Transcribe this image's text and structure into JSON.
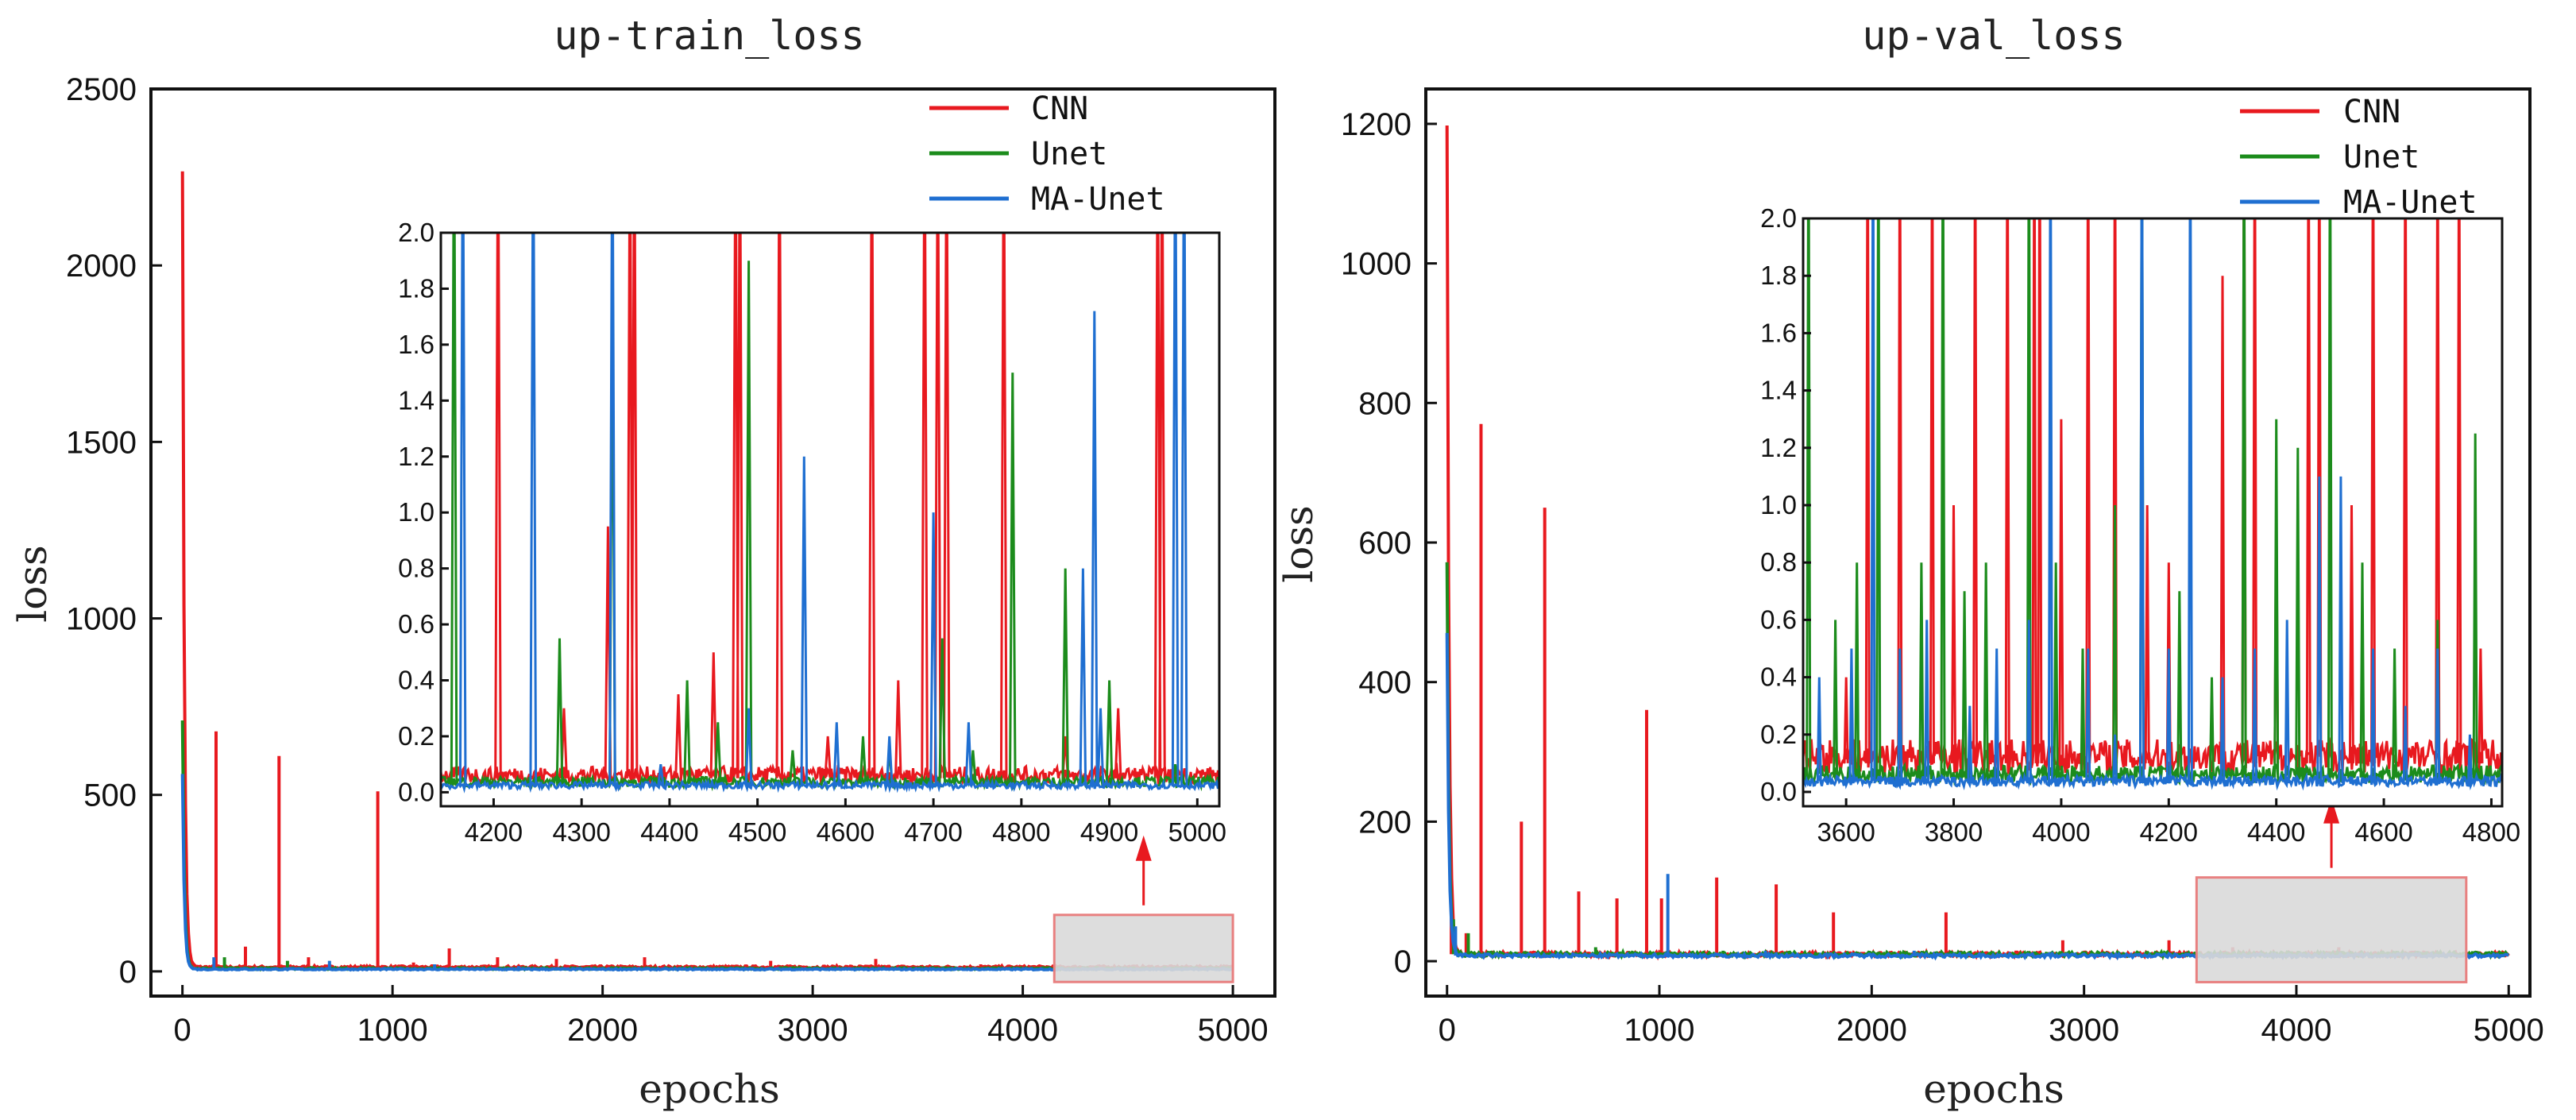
{
  "colors": {
    "CNN": "#e8191f",
    "Unet": "#1c8c1c",
    "MA-Unet": "#1f6fd1",
    "zoom_box_fill": "#d9d9d9",
    "zoom_box_edge": "#e88080",
    "arrow": "#e8191f"
  },
  "chart_data": [
    {
      "type": "line",
      "title": "up-train_loss",
      "xlabel": "epochs",
      "ylabel": "loss",
      "xlim": [
        -150,
        5200
      ],
      "ylim": [
        -70,
        2500
      ],
      "xticks": [
        0,
        1000,
        2000,
        3000,
        4000,
        5000
      ],
      "yticks": [
        0,
        500,
        1000,
        1500,
        2000,
        2500
      ],
      "grid": false,
      "legend_position": "top-right",
      "series": [
        {
          "name": "CNN",
          "start": 2270,
          "decay_to": 12,
          "spikes": [
            [
              160,
              680
            ],
            [
              300,
              70
            ],
            [
              460,
              610
            ],
            [
              600,
              40
            ],
            [
              930,
              510
            ],
            [
              1100,
              25
            ],
            [
              1270,
              65
            ],
            [
              1500,
              40
            ],
            [
              1780,
              35
            ],
            [
              2200,
              40
            ],
            [
              2800,
              30
            ],
            [
              3300,
              35
            ],
            [
              3800,
              20
            ]
          ]
        },
        {
          "name": "Unet",
          "start": 710,
          "decay_to": 8,
          "spikes": [
            [
              200,
              40
            ],
            [
              500,
              30
            ],
            [
              1200,
              20
            ]
          ]
        },
        {
          "name": "MA-Unet",
          "start": 560,
          "decay_to": 6,
          "spikes": [
            [
              150,
              40
            ],
            [
              700,
              30
            ],
            [
              1200,
              20
            ],
            [
              1600,
              15
            ]
          ]
        }
      ],
      "zoom_region": {
        "x": [
          4150,
          5000
        ],
        "y": [
          -30,
          160
        ]
      },
      "inset": {
        "xlim": [
          4140,
          5025
        ],
        "ylim": [
          -0.05,
          2.0
        ],
        "xticks": [
          4200,
          4300,
          4400,
          4500,
          4600,
          4700,
          4800,
          4900,
          5000
        ],
        "yticks": [
          0.0,
          0.2,
          0.4,
          0.6,
          0.8,
          1.0,
          1.2,
          1.4,
          1.6,
          1.8,
          2.0
        ],
        "xtick_labels": [
          "4200",
          "4300",
          "4400",
          "4500",
          "4600",
          "4700",
          "4800",
          "4900",
          "5000"
        ],
        "ytick_labels": [
          "0.0",
          "0.2",
          "0.4",
          "0.6",
          "0.8",
          "1.0",
          "1.2",
          "1.4",
          "1.6",
          "1.8",
          "2.0"
        ],
        "series": [
          {
            "name": "CNN",
            "base": 0.05,
            "spikes": [
              [
                4205,
                2.5
              ],
              [
                4280,
                0.3
              ],
              [
                4330,
                0.95
              ],
              [
                4355,
                2.5
              ],
              [
                4360,
                2.5
              ],
              [
                4410,
                0.35
              ],
              [
                4450,
                0.5
              ],
              [
                4475,
                2.5
              ],
              [
                4480,
                2.5
              ],
              [
                4525,
                2.5
              ],
              [
                4580,
                0.2
              ],
              [
                4630,
                2.5
              ],
              [
                4660,
                0.4
              ],
              [
                4690,
                2.5
              ],
              [
                4705,
                2.5
              ],
              [
                4715,
                2.5
              ],
              [
                4780,
                2.5
              ],
              [
                4850,
                0.2
              ],
              [
                4910,
                0.3
              ],
              [
                4955,
                2.5
              ],
              [
                4960,
                2.5
              ]
            ]
          },
          {
            "name": "Unet",
            "base": 0.03,
            "spikes": [
              [
                4155,
                2.5
              ],
              [
                4275,
                0.55
              ],
              [
                4335,
                1.75
              ],
              [
                4420,
                0.4
              ],
              [
                4455,
                0.25
              ],
              [
                4490,
                1.9
              ],
              [
                4540,
                0.15
              ],
              [
                4620,
                0.2
              ],
              [
                4650,
                0.15
              ],
              [
                4710,
                0.55
              ],
              [
                4745,
                0.15
              ],
              [
                4790,
                1.5
              ],
              [
                4850,
                0.8
              ],
              [
                4900,
                0.4
              ],
              [
                4975,
                0.1
              ]
            ]
          },
          {
            "name": "MA-Unet",
            "base": 0.02,
            "spikes": [
              [
                4165,
                2.5
              ],
              [
                4245,
                2.5
              ],
              [
                4335,
                2.5
              ],
              [
                4390,
                0.1
              ],
              [
                4490,
                0.3
              ],
              [
                4553,
                1.2
              ],
              [
                4590,
                0.25
              ],
              [
                4650,
                0.2
              ],
              [
                4700,
                1.0
              ],
              [
                4740,
                0.25
              ],
              [
                4870,
                0.8
              ],
              [
                4883,
                1.72
              ],
              [
                4890,
                0.3
              ],
              [
                4975,
                2.5
              ],
              [
                4985,
                2.5
              ]
            ]
          }
        ]
      }
    },
    {
      "type": "line",
      "title": "up-val_loss",
      "xlabel": "epochs",
      "ylabel": "loss",
      "xlim": [
        -100,
        5100
      ],
      "ylim": [
        -50,
        1250
      ],
      "xticks": [
        0,
        1000,
        2000,
        3000,
        4000,
        5000
      ],
      "yticks": [
        0,
        200,
        400,
        600,
        800,
        1000,
        1200
      ],
      "grid": false,
      "legend_position": "top-right",
      "series": [
        {
          "name": "CNN",
          "start": 1195,
          "decay_to": 10,
          "spikes": [
            [
              20,
              70
            ],
            [
              90,
              40
            ],
            [
              160,
              770
            ],
            [
              350,
              200
            ],
            [
              460,
              650
            ],
            [
              620,
              100
            ],
            [
              800,
              90
            ],
            [
              940,
              360
            ],
            [
              1010,
              90
            ],
            [
              1270,
              120
            ],
            [
              1550,
              110
            ],
            [
              1820,
              70
            ],
            [
              2350,
              70
            ],
            [
              2900,
              30
            ],
            [
              3400,
              30
            ],
            [
              3700,
              20
            ],
            [
              4200,
              20
            ],
            [
              4600,
              15
            ]
          ]
        },
        {
          "name": "Unet",
          "start": 570,
          "decay_to": 10,
          "spikes": [
            [
              30,
              60
            ],
            [
              100,
              40
            ],
            [
              700,
              20
            ],
            [
              1300,
              15
            ]
          ]
        },
        {
          "name": "MA-Unet",
          "start": 470,
          "decay_to": 8,
          "spikes": [
            [
              40,
              50
            ],
            [
              1040,
              125
            ],
            [
              1500,
              15
            ],
            [
              2200,
              15
            ]
          ]
        }
      ],
      "zoom_region": {
        "x": [
          3530,
          4800
        ],
        "y": [
          -30,
          120
        ]
      },
      "inset": {
        "xlim": [
          3520,
          4820
        ],
        "ylim": [
          -0.05,
          2.0
        ],
        "xticks": [
          3600,
          3800,
          4000,
          4200,
          4400,
          4600,
          4800
        ],
        "yticks": [
          0.0,
          0.2,
          0.4,
          0.6,
          0.8,
          1.0,
          1.2,
          1.4,
          1.6,
          1.8,
          2.0
        ],
        "xtick_labels": [
          "3600",
          "3800",
          "4000",
          "4200",
          "4400",
          "4600",
          "4800"
        ],
        "ytick_labels": [
          "0.0",
          "0.2",
          "0.4",
          "0.6",
          "0.8",
          "1.0",
          "1.2",
          "1.4",
          "1.6",
          "1.8",
          "2.0"
        ],
        "series": [
          {
            "name": "CNN",
            "base": 0.1,
            "spikes": [
              [
                3600,
                0.4
              ],
              [
                3640,
                2.5
              ],
              [
                3700,
                2.5
              ],
              [
                3760,
                2.5
              ],
              [
                3800,
                1.0
              ],
              [
                3840,
                2.5
              ],
              [
                3900,
                2.5
              ],
              [
                3950,
                2.5
              ],
              [
                3960,
                2.5
              ],
              [
                4000,
                1.3
              ],
              [
                4050,
                2.5
              ],
              [
                4100,
                2.5
              ],
              [
                4160,
                1.0
              ],
              [
                4200,
                0.8
              ],
              [
                4300,
                1.8
              ],
              [
                4340,
                2.5
              ],
              [
                4360,
                2.5
              ],
              [
                4400,
                1.0
              ],
              [
                4460,
                2.5
              ],
              [
                4480,
                2.5
              ],
              [
                4540,
                1.0
              ],
              [
                4580,
                2.5
              ],
              [
                4640,
                2.5
              ],
              [
                4700,
                2.5
              ],
              [
                4740,
                2.5
              ],
              [
                4780,
                0.5
              ]
            ]
          },
          {
            "name": "Unet",
            "base": 0.05,
            "spikes": [
              [
                3530,
                2.5
              ],
              [
                3580,
                0.6
              ],
              [
                3620,
                0.8
              ],
              [
                3660,
                2.5
              ],
              [
                3700,
                0.5
              ],
              [
                3740,
                0.8
              ],
              [
                3780,
                2.5
              ],
              [
                3820,
                0.7
              ],
              [
                3860,
                0.8
              ],
              [
                3940,
                2.5
              ],
              [
                3990,
                0.8
              ],
              [
                4040,
                0.5
              ],
              [
                4100,
                1.0
              ],
              [
                4150,
                2.5
              ],
              [
                4220,
                0.7
              ],
              [
                4280,
                0.4
              ],
              [
                4340,
                2.5
              ],
              [
                4400,
                1.3
              ],
              [
                4440,
                1.2
              ],
              [
                4500,
                2.5
              ],
              [
                4560,
                0.8
              ],
              [
                4620,
                0.5
              ],
              [
                4700,
                0.6
              ],
              [
                4770,
                1.25
              ]
            ]
          },
          {
            "name": "MA-Unet",
            "base": 0.03,
            "spikes": [
              [
                3550,
                0.4
              ],
              [
                3610,
                0.5
              ],
              [
                3650,
                2.5
              ],
              [
                3700,
                0.5
              ],
              [
                3750,
                0.6
              ],
              [
                3830,
                0.3
              ],
              [
                3880,
                0.5
              ],
              [
                3940,
                0.6
              ],
              [
                3980,
                2.5
              ],
              [
                4050,
                0.5
              ],
              [
                4100,
                0.2
              ],
              [
                4150,
                2.5
              ],
              [
                4200,
                0.5
              ],
              [
                4240,
                2.5
              ],
              [
                4300,
                0.4
              ],
              [
                4360,
                0.5
              ],
              [
                4420,
                0.6
              ],
              [
                4480,
                1.1
              ],
              [
                4520,
                1.1
              ],
              [
                4580,
                0.5
              ],
              [
                4640,
                0.3
              ],
              [
                4700,
                0.5
              ],
              [
                4760,
                0.2
              ]
            ]
          }
        ]
      }
    }
  ]
}
